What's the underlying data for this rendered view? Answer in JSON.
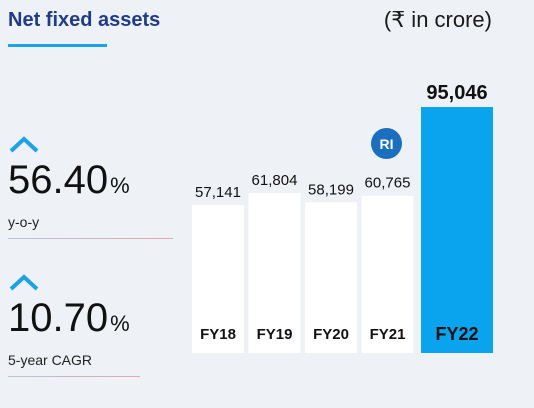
{
  "header": {
    "title": "Net fixed assets",
    "unit": "(₹ in crore)"
  },
  "stats": [
    {
      "value": "56.40",
      "suffix": "%",
      "caption": "y-o-y",
      "icon": "chevron-up-icon"
    },
    {
      "value": "10.70",
      "suffix": "%",
      "caption": "5-year CAGR",
      "icon": "chevron-up-icon"
    }
  ],
  "badge": {
    "label": "RI"
  },
  "colors": {
    "title": "#1f3b8a",
    "accent": "#1aa3e8",
    "bar": "#ffffff",
    "highlight_bar": "#0aa3ee",
    "badge": "#1a6fc1"
  },
  "chart_data": {
    "type": "bar",
    "categories": [
      "FY18",
      "FY19",
      "FY20",
      "FY21",
      "FY22"
    ],
    "values": [
      57141,
      61804,
      58199,
      60765,
      95046
    ],
    "value_labels": [
      "57,141",
      "61,804",
      "58,199",
      "60,765",
      "95,046"
    ],
    "highlight_index": 4,
    "ylim": [
      0,
      100000
    ],
    "grid": false,
    "legend": "none"
  }
}
